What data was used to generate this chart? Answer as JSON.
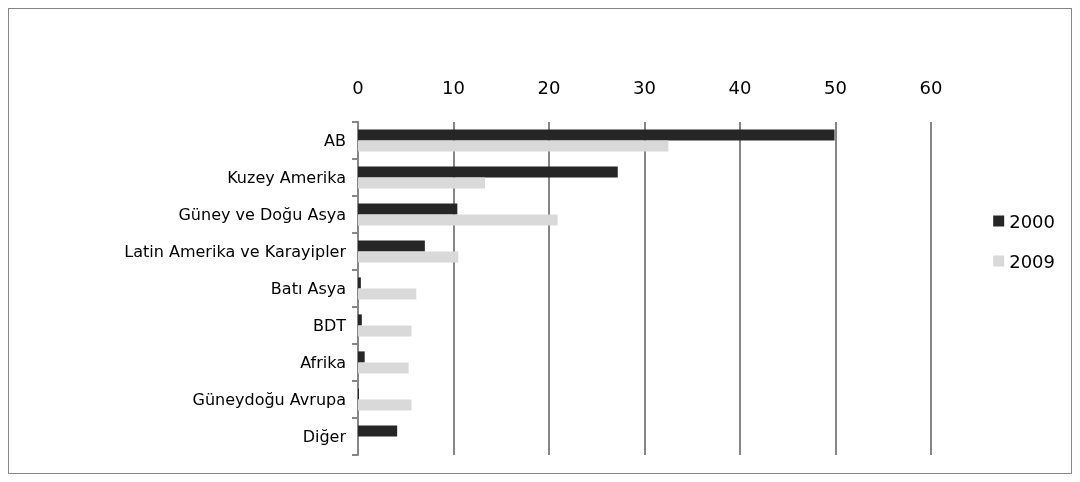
{
  "chart_data": {
    "type": "bar",
    "orientation": "horizontal",
    "categories": [
      "AB",
      "Kuzey Amerika",
      "Güney ve Doğu Asya",
      "Latin Amerika ve Karayipler",
      "Batı Asya",
      "BDT",
      "Afrika",
      "Güneydoğu Avrupa",
      "Diğer"
    ],
    "series": [
      {
        "name": "2000",
        "color": "#262626",
        "values": [
          49.9,
          27.2,
          10.4,
          7.0,
          0.3,
          0.4,
          0.7,
          0.1,
          4.1
        ]
      },
      {
        "name": "2009",
        "color": "#d9d9d9",
        "values": [
          32.5,
          13.3,
          20.9,
          10.5,
          6.1,
          5.6,
          5.3,
          5.6,
          null
        ]
      }
    ],
    "xlim": [
      0,
      60
    ],
    "xticks": [
      0,
      10,
      20,
      30,
      40,
      50,
      60
    ],
    "grid": "x",
    "legend": "right"
  }
}
